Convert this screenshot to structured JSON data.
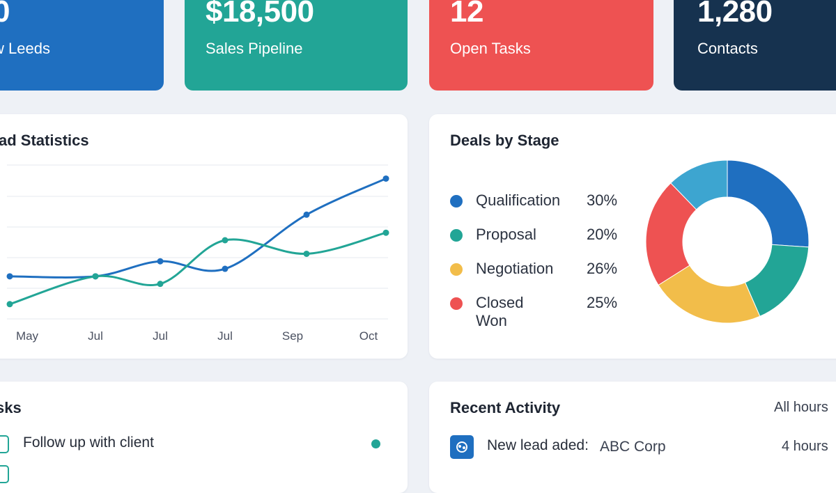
{
  "kpis": [
    {
      "value": "0",
      "label": "w Leeds",
      "color": "#1f6fc0"
    },
    {
      "value": "$18,500",
      "label": "Sales Pipeline",
      "color": "#22a596"
    },
    {
      "value": "12",
      "label": "Open Tasks",
      "color": "#ee5252"
    },
    {
      "value": "1,280",
      "label": "Contacts",
      "color": "#16324f"
    }
  ],
  "lead_stats": {
    "title": "ad Statistics"
  },
  "deals": {
    "title": "Deals by Stage"
  },
  "tasks": {
    "title": "sks",
    "items": [
      {
        "label": "Follow up with client",
        "status_color": "#22a596"
      }
    ]
  },
  "activity": {
    "title": "Recent Activity",
    "filter": "All hours",
    "items": [
      {
        "action": "New lead aded:",
        "subject": "ABC Corp",
        "time": "4 hours"
      }
    ]
  },
  "chart_data": [
    {
      "type": "line",
      "title": "ad Statistics",
      "x": [
        "May",
        "Jul",
        "Jul",
        "Jul",
        "Sep",
        "Oct"
      ],
      "grid": true,
      "series": [
        {
          "color": "#1f6fc0",
          "values": [
            5.2,
            5.2,
            7.2,
            6.2,
            13.4,
            18.2
          ]
        },
        {
          "color": "#22a596",
          "values": [
            1.5,
            5.2,
            4.2,
            10.0,
            8.2,
            11.0
          ]
        }
      ]
    },
    {
      "type": "pie",
      "title": "Deals by Stage",
      "labels": [
        "Qualification",
        "Proposal",
        "Negotiation",
        "Closed Won"
      ],
      "display": [
        "30%",
        "20%",
        "26%",
        "25%"
      ],
      "values": [
        30,
        20,
        26,
        25
      ],
      "colors": [
        "#1f6fc0",
        "#22a596",
        "#f2bd4a",
        "#ee5252"
      ],
      "donut": true
    }
  ]
}
